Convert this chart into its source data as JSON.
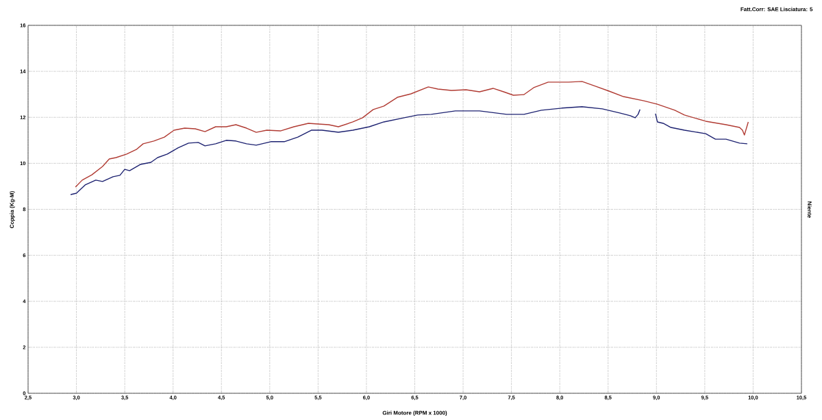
{
  "chart_data": {
    "type": "line",
    "xlabel": "Giri Motore (RPM x 1000)",
    "ylabel": "Coppia (Kg-M)",
    "y2label": "Niente",
    "annotations": [
      "Fatt.Corr: SAE  Lisciatura: 5"
    ],
    "xlim": [
      2.5,
      10.5
    ],
    "ylim": [
      0,
      16
    ],
    "xticks": [
      {
        "value": 2.5,
        "label": "2,5"
      },
      {
        "value": 3.0,
        "label": "3,0"
      },
      {
        "value": 3.5,
        "label": "3,5"
      },
      {
        "value": 4.0,
        "label": "4,0"
      },
      {
        "value": 4.5,
        "label": "4,5"
      },
      {
        "value": 5.0,
        "label": "5,0"
      },
      {
        "value": 5.5,
        "label": "5,5"
      },
      {
        "value": 6.0,
        "label": "6,0"
      },
      {
        "value": 6.5,
        "label": "6,5"
      },
      {
        "value": 7.0,
        "label": "7,0"
      },
      {
        "value": 7.5,
        "label": "7,5"
      },
      {
        "value": 8.0,
        "label": "8,0"
      },
      {
        "value": 8.5,
        "label": "8,5"
      },
      {
        "value": 9.0,
        "label": "9,0"
      },
      {
        "value": 9.5,
        "label": "9,5"
      },
      {
        "value": 10.0,
        "label": "10,0"
      },
      {
        "value": 10.5,
        "label": "10,5"
      }
    ],
    "yticks": [
      0,
      2,
      4,
      6,
      8,
      10,
      12,
      14,
      16
    ],
    "grid": true,
    "series": [
      {
        "color": "#b03a32",
        "x": [
          2.99,
          3.06,
          3.16,
          3.27,
          3.34,
          3.41,
          3.52,
          3.62,
          3.69,
          3.8,
          3.91,
          4.01,
          4.12,
          4.23,
          4.33,
          4.44,
          4.55,
          4.65,
          4.76,
          4.86,
          4.97,
          5.11,
          5.25,
          5.4,
          5.5,
          5.61,
          5.71,
          5.86,
          5.96,
          6.07,
          6.18,
          6.32,
          6.46,
          6.64,
          6.74,
          6.88,
          7.03,
          7.17,
          7.31,
          7.42,
          7.52,
          7.63,
          7.73,
          7.88,
          8.09,
          8.23,
          8.37,
          8.51,
          8.66,
          8.87,
          9.01,
          9.19,
          9.29,
          9.51,
          9.72,
          9.86,
          9.89,
          9.91,
          9.95
        ],
        "values": [
          8.97,
          9.27,
          9.5,
          9.86,
          10.19,
          10.25,
          10.4,
          10.6,
          10.85,
          10.97,
          11.14,
          11.44,
          11.53,
          11.5,
          11.38,
          11.59,
          11.59,
          11.68,
          11.53,
          11.35,
          11.44,
          11.41,
          11.59,
          11.74,
          11.71,
          11.68,
          11.59,
          11.8,
          11.98,
          12.34,
          12.49,
          12.87,
          13.02,
          13.32,
          13.23,
          13.17,
          13.2,
          13.11,
          13.26,
          13.11,
          12.96,
          12.99,
          13.29,
          13.53,
          13.53,
          13.56,
          13.35,
          13.14,
          12.9,
          12.72,
          12.57,
          12.31,
          12.1,
          11.83,
          11.68,
          11.56,
          11.44,
          11.23,
          11.8
        ]
      },
      {
        "color": "#1c2170",
        "x": [
          2.94,
          3.0,
          3.09,
          3.2,
          3.27,
          3.38,
          3.45,
          3.5,
          3.55,
          3.66,
          3.77,
          3.84,
          3.94,
          4.05,
          4.16,
          4.26,
          4.33,
          4.44,
          4.55,
          4.65,
          4.76,
          4.86,
          5.01,
          5.15,
          5.29,
          5.43,
          5.54,
          5.71,
          5.86,
          6.03,
          6.18,
          6.39,
          6.53,
          6.67,
          6.92,
          7.17,
          7.45,
          7.63,
          7.81,
          8.02,
          8.23,
          8.44,
          8.62,
          8.73,
          8.78,
          8.81,
          8.83,
          8.91,
          8.99,
          9.01,
          9.07,
          9.15,
          9.29,
          9.51,
          9.61,
          9.72,
          9.86,
          9.94
        ],
        "values": [
          8.64,
          8.7,
          9.06,
          9.27,
          9.21,
          9.42,
          9.48,
          9.74,
          9.68,
          9.95,
          10.04,
          10.25,
          10.4,
          10.67,
          10.88,
          10.91,
          10.76,
          10.85,
          11.0,
          10.97,
          10.85,
          10.79,
          10.94,
          10.94,
          11.14,
          11.44,
          11.44,
          11.35,
          11.44,
          11.59,
          11.8,
          11.98,
          12.1,
          12.13,
          12.28,
          12.28,
          12.13,
          12.13,
          12.31,
          12.4,
          12.46,
          12.37,
          12.19,
          12.07,
          11.98,
          12.13,
          12.34,
          null,
          12.16,
          11.8,
          11.74,
          11.56,
          11.44,
          11.29,
          11.05,
          11.05,
          10.88,
          10.85
        ]
      }
    ]
  }
}
